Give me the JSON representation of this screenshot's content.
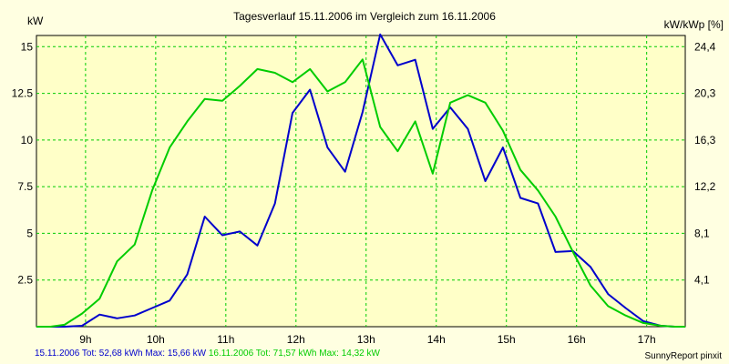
{
  "chart_data": {
    "type": "line",
    "title": "Tagesverlauf 15.11.2006 im Vergleich zum 16.11.2006",
    "ylabel": "kW",
    "y2label": "kW/kWp [%]",
    "x_ticks": [
      "9h",
      "10h",
      "11h",
      "12h",
      "13h",
      "14h",
      "15h",
      "16h",
      "17h"
    ],
    "x_range": [
      8.3,
      17.55
    ],
    "ylim": [
      0,
      15.6
    ],
    "y_ticks": [
      "2.5",
      "5",
      "7.5",
      "10",
      "12.5",
      "15"
    ],
    "y_tick_values": [
      2.5,
      5,
      7.5,
      10,
      12.5,
      15
    ],
    "y2_ticks": [
      "4,1",
      "8,1",
      "12,2",
      "16,3",
      "20,3",
      "24,4"
    ],
    "grid": true,
    "series": [
      {
        "name": "15.11.2006",
        "color": "#0000cc",
        "x": [
          8.3,
          8.5,
          8.7,
          8.95,
          9.2,
          9.45,
          9.7,
          9.95,
          10.2,
          10.45,
          10.7,
          10.95,
          11.2,
          11.45,
          11.7,
          11.95,
          12.2,
          12.45,
          12.7,
          12.95,
          13.2,
          13.45,
          13.7,
          13.95,
          14.2,
          14.45,
          14.7,
          14.95,
          15.2,
          15.45,
          15.7,
          15.95,
          16.2,
          16.45,
          16.7,
          16.95,
          17.2,
          17.4,
          17.55
        ],
        "y": [
          0,
          0,
          0,
          0.05,
          0.65,
          0.45,
          0.6,
          1,
          1.4,
          2.8,
          5.9,
          4.9,
          5.1,
          4.35,
          6.6,
          11.45,
          12.7,
          9.6,
          8.3,
          11.5,
          15.66,
          14,
          14.3,
          10.6,
          11.75,
          10.6,
          7.8,
          9.6,
          6.9,
          6.6,
          4,
          4.05,
          3.2,
          1.75,
          1,
          0.3,
          0.05,
          0,
          0
        ]
      },
      {
        "name": "16.11.2006",
        "color": "#00cc00",
        "x": [
          8.3,
          8.5,
          8.7,
          8.95,
          9.2,
          9.45,
          9.7,
          9.95,
          10.2,
          10.45,
          10.7,
          10.95,
          11.2,
          11.45,
          11.7,
          11.95,
          12.2,
          12.45,
          12.7,
          12.95,
          13.2,
          13.45,
          13.7,
          13.95,
          14.2,
          14.45,
          14.7,
          14.95,
          15.2,
          15.45,
          15.7,
          15.95,
          16.2,
          16.45,
          16.7,
          16.95,
          17.2,
          17.4,
          17.55
        ],
        "y": [
          0,
          0,
          0.1,
          0.7,
          1.5,
          3.5,
          4.4,
          7.3,
          9.6,
          11,
          12.2,
          12.1,
          12.9,
          13.8,
          13.6,
          13.1,
          13.8,
          12.6,
          13.1,
          14.32,
          10.7,
          9.4,
          11,
          8.2,
          12,
          12.4,
          12,
          10.5,
          8.4,
          7.3,
          5.9,
          4,
          2.2,
          1.1,
          0.6,
          0.2,
          0.05,
          0,
          0
        ]
      }
    ]
  },
  "footer": {
    "series1_text": "15.11.2006 Tot: 52,68 kWh Max: 15,66 kW",
    "series2_text": "16.11.2006 Tot: 71,57 kWh Max: 14,32 kW",
    "brand": "SunnyReport pinxit"
  },
  "colors": {
    "background": "#ffffe1",
    "plot_background": "#ffffc8",
    "grid": "#00cc00",
    "series1": "#0000cc",
    "series2": "#00cc00"
  }
}
